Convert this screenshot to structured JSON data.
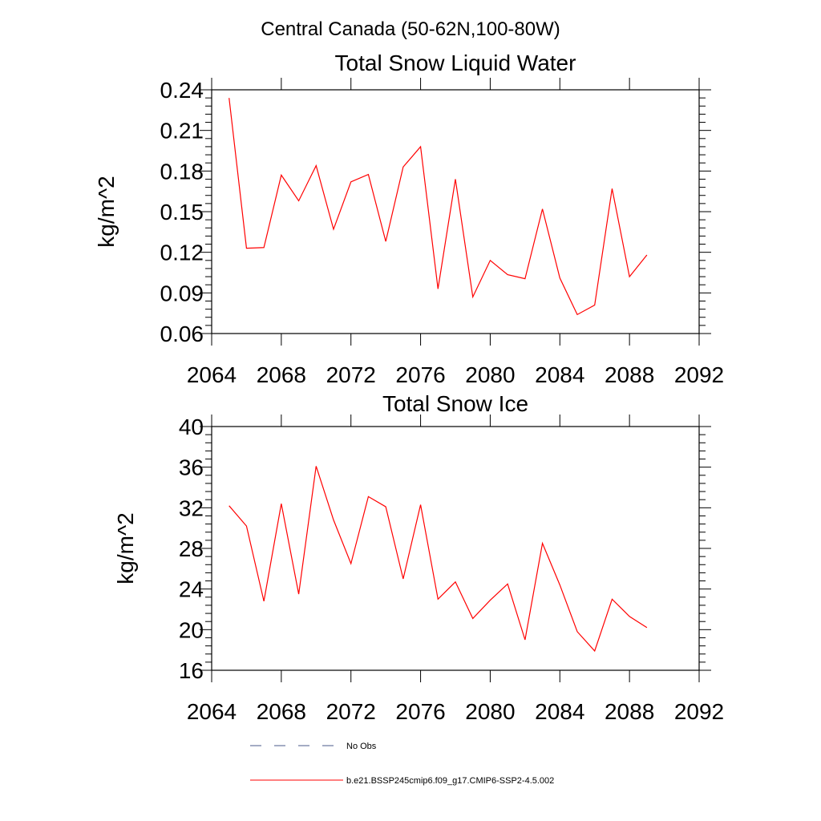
{
  "figure": {
    "main_title": "Central Canada (50-62N,100-80W)"
  },
  "chart_data": [
    {
      "type": "line",
      "title": "Total Snow Liquid Water",
      "xlabel": "",
      "ylabel": "kg/m^2",
      "xlim": [
        2064,
        2092
      ],
      "ylim": [
        0.06,
        0.24
      ],
      "x_ticks": [
        2064,
        2068,
        2072,
        2076,
        2080,
        2084,
        2088,
        2092
      ],
      "x_tick_labels": [
        "2064",
        "2068",
        "2072",
        "2076",
        "2080",
        "2084",
        "2088",
        "2092"
      ],
      "y_ticks": [
        0.06,
        0.09,
        0.12,
        0.15,
        0.18,
        0.21,
        0.24
      ],
      "y_tick_labels": [
        "0.06",
        "0.09",
        "0.12",
        "0.15",
        "0.18",
        "0.21",
        "0.24"
      ],
      "grid": false,
      "x": [
        2065,
        2066,
        2067,
        2068,
        2069,
        2070,
        2071,
        2072,
        2073,
        2074,
        2075,
        2076,
        2077,
        2078,
        2079,
        2080,
        2081,
        2082,
        2083,
        2084,
        2085,
        2086,
        2087,
        2088,
        2089
      ],
      "series": [
        {
          "name": "b.e21.BSSP245cmip6.f09_g17.CMIP6-SSP2-4.5.002",
          "color": "#ff0000",
          "values": [
            0.234,
            0.123,
            0.1235,
            0.177,
            0.158,
            0.184,
            0.137,
            0.172,
            0.1775,
            0.128,
            0.183,
            0.198,
            0.093,
            0.174,
            0.087,
            0.114,
            0.1035,
            0.1005,
            0.152,
            0.101,
            0.074,
            0.081,
            0.167,
            0.102,
            0.118
          ]
        }
      ]
    },
    {
      "type": "line",
      "title": "Total Snow Ice",
      "xlabel": "",
      "ylabel": "kg/m^2",
      "xlim": [
        2064,
        2092
      ],
      "ylim": [
        16,
        40
      ],
      "x_ticks": [
        2064,
        2068,
        2072,
        2076,
        2080,
        2084,
        2088,
        2092
      ],
      "x_tick_labels": [
        "2064",
        "2068",
        "2072",
        "2076",
        "2080",
        "2084",
        "2088",
        "2092"
      ],
      "y_ticks": [
        16,
        20,
        24,
        28,
        32,
        36,
        40
      ],
      "y_tick_labels": [
        "16",
        "20",
        "24",
        "28",
        "32",
        "36",
        "40"
      ],
      "grid": false,
      "x": [
        2065,
        2066,
        2067,
        2068,
        2069,
        2070,
        2071,
        2072,
        2073,
        2074,
        2075,
        2076,
        2077,
        2078,
        2079,
        2080,
        2081,
        2082,
        2083,
        2084,
        2085,
        2086,
        2087,
        2088,
        2089
      ],
      "series": [
        {
          "name": "b.e21.BSSP245cmip6.f09_g17.CMIP6-SSP2-4.5.002",
          "color": "#ff0000",
          "values": [
            32.2,
            30.2,
            22.8,
            32.4,
            23.5,
            36.1,
            30.8,
            26.5,
            33.1,
            32.1,
            25.0,
            32.3,
            23.0,
            24.7,
            21.1,
            22.9,
            24.5,
            19.0,
            28.5,
            24.4,
            19.8,
            17.9,
            23.0,
            21.3,
            20.2
          ]
        }
      ]
    }
  ],
  "legend": {
    "position": "bottom-center",
    "entries": [
      {
        "label": "No Obs",
        "color": "#4a5a8a",
        "style": "dashed"
      },
      {
        "label": "b.e21.BSSP245cmip6.f09_g17.CMIP6-SSP2-4.5.002",
        "color": "#ff0000",
        "style": "solid"
      }
    ]
  }
}
